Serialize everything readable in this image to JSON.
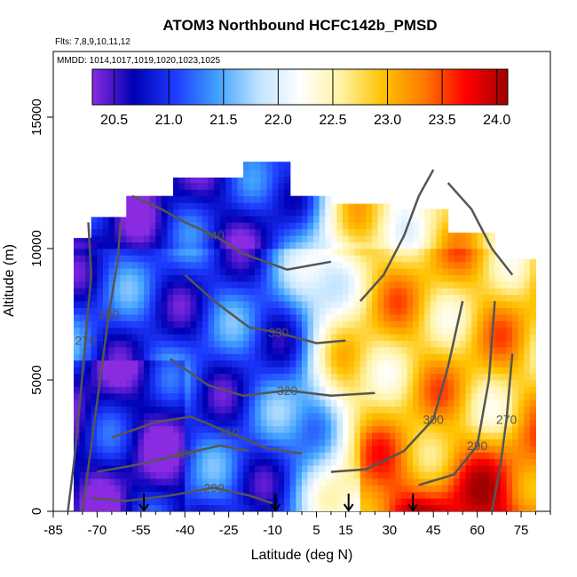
{
  "chart_data": {
    "type": "heatmap",
    "title": "ATOM3 Northbound HCFC142b_PMSD",
    "flights_note": "Flts: 7,8,9,10,11,12",
    "dates_note": "MMDD: 1014,1017,1019,1020,1023,1025",
    "xlabel": "Latitude (deg N)",
    "ylabel": "Altitude (m)",
    "xlim": [
      -85,
      85
    ],
    "ylim": [
      0,
      17500
    ],
    "x_ticks": [
      -85,
      -70,
      -55,
      -40,
      -25,
      -10,
      5,
      15,
      30,
      45,
      60,
      75
    ],
    "y_ticks": [
      0,
      5000,
      10000,
      15000
    ],
    "colorbar": {
      "range": [
        20.3,
        24.1
      ],
      "ticks": [
        20.5,
        21.0,
        21.5,
        22.0,
        22.5,
        23.0,
        23.5,
        24.0
      ],
      "colors": [
        "#8a2be2",
        "#0000b4",
        "#1e3cff",
        "#3fa0ff",
        "#bfe3ff",
        "#ffffff",
        "#fff2a0",
        "#ffc200",
        "#ff7800",
        "#ff0000",
        "#a00000"
      ]
    },
    "contours": [
      {
        "label": "270",
        "path": [
          [
            -80,
            0
          ],
          [
            -78,
            1800
          ],
          [
            -76,
            4000
          ],
          [
            -74,
            6500
          ],
          [
            -72,
            9000
          ],
          [
            -73,
            11000
          ]
        ]
      },
      {
        "label": "280",
        "path": [
          [
            -75,
            0
          ],
          [
            -72,
            2500
          ],
          [
            -69,
            5000
          ],
          [
            -66,
            7500
          ],
          [
            -63,
            9500
          ],
          [
            -62,
            11000
          ]
        ]
      },
      {
        "label": "290",
        "path": [
          [
            -72,
            500
          ],
          [
            -60,
            400
          ],
          [
            -45,
            600
          ],
          [
            -30,
            900
          ],
          [
            -18,
            600
          ],
          [
            -10,
            300
          ]
        ]
      },
      {
        "label": "300",
        "path": [
          [
            -70,
            1500
          ],
          [
            -55,
            1800
          ],
          [
            -40,
            2200
          ],
          [
            -28,
            2500
          ],
          [
            -18,
            2300
          ]
        ]
      },
      {
        "label": "310",
        "path": [
          [
            -65,
            2800
          ],
          [
            -50,
            3400
          ],
          [
            -38,
            3600
          ],
          [
            -25,
            3000
          ],
          [
            -12,
            2400
          ],
          [
            0,
            2200
          ]
        ]
      },
      {
        "label": "320",
        "path": [
          [
            -45,
            5800
          ],
          [
            -32,
            4800
          ],
          [
            -20,
            4400
          ],
          [
            -5,
            4600
          ],
          [
            10,
            4400
          ],
          [
            25,
            4500
          ]
        ]
      },
      {
        "label": "330",
        "path": [
          [
            -40,
            9000
          ],
          [
            -30,
            8000
          ],
          [
            -18,
            7000
          ],
          [
            -8,
            6800
          ],
          [
            5,
            6400
          ],
          [
            15,
            6500
          ]
        ]
      },
      {
        "label": "340",
        "path": [
          [
            -58,
            12000
          ],
          [
            -48,
            11500
          ],
          [
            -40,
            11000
          ],
          [
            -30,
            10500
          ],
          [
            -20,
            9800
          ],
          [
            -5,
            9200
          ],
          [
            10,
            9500
          ]
        ]
      },
      {
        "label": "300",
        "path": [
          [
            10,
            1500
          ],
          [
            22,
            1600
          ],
          [
            35,
            2300
          ],
          [
            45,
            3500
          ],
          [
            50,
            5500
          ],
          [
            55,
            8000
          ]
        ]
      },
      {
        "label": "290",
        "path": [
          [
            40,
            1000
          ],
          [
            52,
            1400
          ],
          [
            60,
            2500
          ],
          [
            64,
            5000
          ],
          [
            66,
            8000
          ]
        ]
      },
      {
        "label": "270",
        "path": [
          [
            65,
            0
          ],
          [
            68,
            1800
          ],
          [
            70,
            3500
          ],
          [
            72,
            6000
          ]
        ]
      },
      {
        "label": "",
        "path": [
          [
            20,
            8000
          ],
          [
            28,
            9000
          ],
          [
            35,
            10500
          ],
          [
            40,
            12000
          ],
          [
            45,
            13000
          ]
        ]
      },
      {
        "label": "",
        "path": [
          [
            50,
            12500
          ],
          [
            58,
            11500
          ],
          [
            65,
            10000
          ],
          [
            72,
            9000
          ]
        ]
      }
    ],
    "arrows": [
      -54,
      -9,
      16,
      38
    ]
  }
}
